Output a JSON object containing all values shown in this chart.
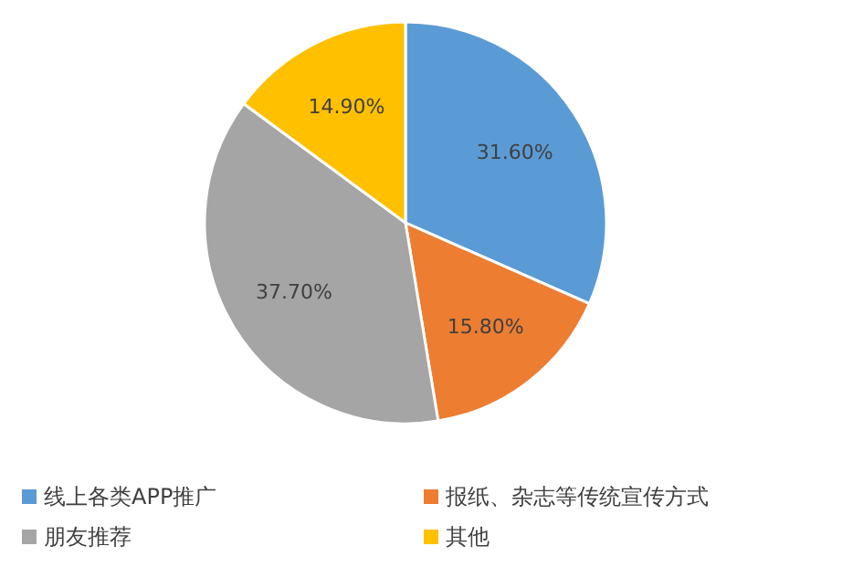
{
  "chart_data": {
    "type": "pie",
    "categories": [
      "线上各类APP推广",
      "报纸、杂志等传统宣传方式",
      "朋友推荐",
      "其他"
    ],
    "values": [
      31.6,
      15.8,
      37.7,
      14.9
    ],
    "value_labels": [
      "31.60%",
      "15.80%",
      "37.70%",
      "14.90%"
    ],
    "colors": [
      "#5b9bd5",
      "#ed7d31",
      "#a5a5a5",
      "#ffc000"
    ],
    "legend": "bottom"
  }
}
